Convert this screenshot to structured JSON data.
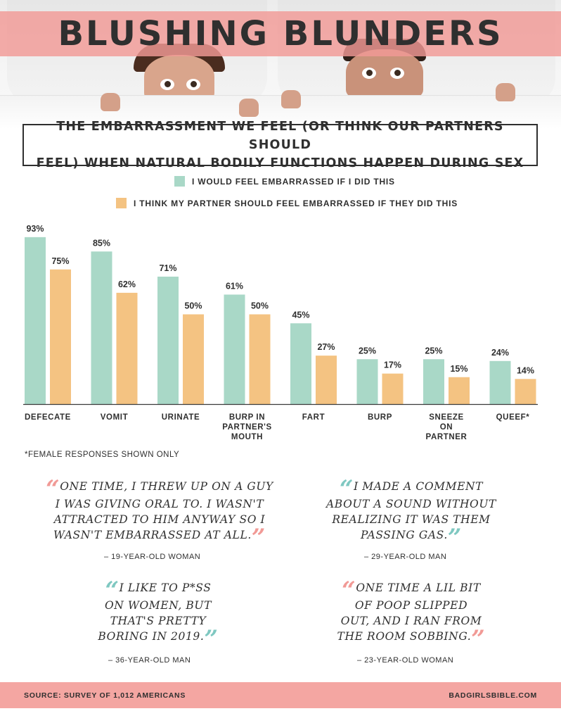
{
  "header": {
    "title": "BLUSHING BLUNDERS",
    "subtitle_line1": "THE EMBARRASSMENT WE FEEL (OR THINK OUR PARTNERS SHOULD",
    "subtitle_line2": "FEEL) WHEN NATURAL BODILY FUNCTIONS HAPPEN DURING SEX"
  },
  "colors": {
    "series_self": "#a9d8c7",
    "series_partner": "#f4c382",
    "accent_pink": "#f19a96",
    "accent_teal": "#7fc8c1"
  },
  "chart_data": {
    "type": "bar",
    "categories": [
      "DEFECATE",
      "VOMIT",
      "URINATE",
      "BURP IN PARTNER'S MOUTH",
      "FART",
      "BURP",
      "SNEEZE ON PARTNER",
      "QUEEF*"
    ],
    "series": [
      {
        "name": "I WOULD FEEL EMBARRASSED IF I DID THIS",
        "values": [
          93,
          85,
          71,
          61,
          45,
          25,
          25,
          24
        ]
      },
      {
        "name": "I THINK MY PARTNER SHOULD FEEL EMBARRASSED IF THEY DID THIS",
        "values": [
          75,
          62,
          50,
          50,
          27,
          17,
          15,
          14
        ]
      }
    ],
    "labels": {
      "self": [
        "93%",
        "85%",
        "71%",
        "61%",
        "45%",
        "25%",
        "25%",
        "24%"
      ],
      "partner": [
        "75%",
        "62%",
        "50%",
        "50%",
        "27%",
        "17%",
        "15%",
        "14%"
      ]
    },
    "category_lines": [
      [
        "DEFECATE"
      ],
      [
        "VOMIT"
      ],
      [
        "URINATE"
      ],
      [
        "BURP IN",
        "PARTNER'S",
        "MOUTH"
      ],
      [
        "FART"
      ],
      [
        "BURP"
      ],
      [
        "SNEEZE",
        "ON",
        "PARTNER"
      ],
      [
        "QUEEF*"
      ]
    ],
    "ylim": [
      0,
      100
    ],
    "grid": false,
    "legend_placement": "top"
  },
  "footnote": "*FEMALE RESPONSES SHOWN ONLY",
  "quotes": [
    {
      "text": "ONE TIME, I THREW UP ON A GUY\nI WAS GIVING ORAL TO. I WASN'T\nATTRACTED TO HIM ANYWAY SO I\nWASN'T EMBARRASSED AT ALL.",
      "attribution": "– 19-YEAR-OLD WOMAN"
    },
    {
      "text": "I MADE A COMMENT\nABOUT A SOUND WITHOUT\nREALIZING IT WAS THEM\nPASSING GAS.",
      "attribution": "– 29-YEAR-OLD MAN"
    },
    {
      "text": "I LIKE TO P*SS\nON WOMEN, BUT\nTHAT'S PRETTY\nBORING IN 2019.",
      "attribution": "– 36-YEAR-OLD MAN"
    },
    {
      "text": "ONE TIME A LIL BIT\nOF POOP SLIPPED\nOUT, AND I RAN FROM\nTHE ROOM SOBBING.",
      "attribution": "– 23-YEAR-OLD WOMAN"
    }
  ],
  "footer": {
    "source": "SOURCE: SURVEY OF 1,012 AMERICANS",
    "site": "BADGIRLSBIBLE.COM"
  }
}
